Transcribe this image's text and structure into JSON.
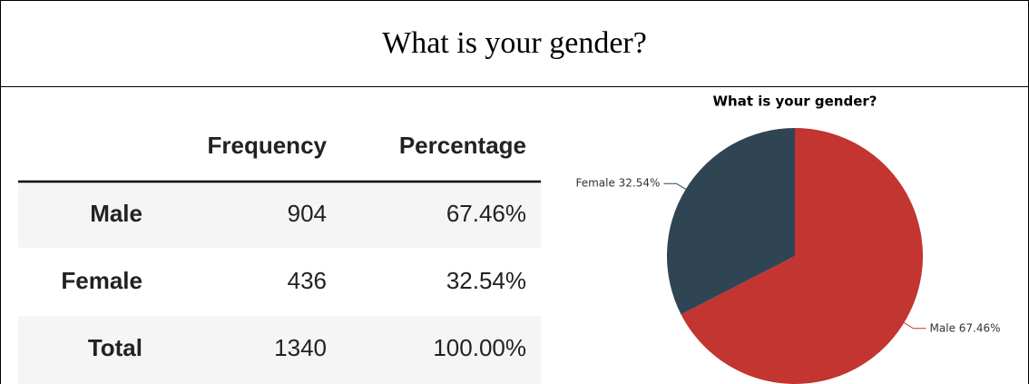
{
  "header": {
    "title": "What is your gender?"
  },
  "table": {
    "columns": [
      "",
      "Frequency",
      "Percentage"
    ],
    "rows": [
      [
        "Male",
        "904",
        "67.46%"
      ],
      [
        "Female",
        "436",
        "32.54%"
      ],
      [
        "Total",
        "1340",
        "100.00%"
      ]
    ]
  },
  "chart_data": {
    "type": "pie",
    "title": "What is your gender?",
    "values": [
      67.46,
      32.54
    ],
    "value_labels": [
      "Male 67.46%",
      "Female 32.54%"
    ],
    "colors": [
      "#c23531",
      "#2f4554"
    ]
  }
}
